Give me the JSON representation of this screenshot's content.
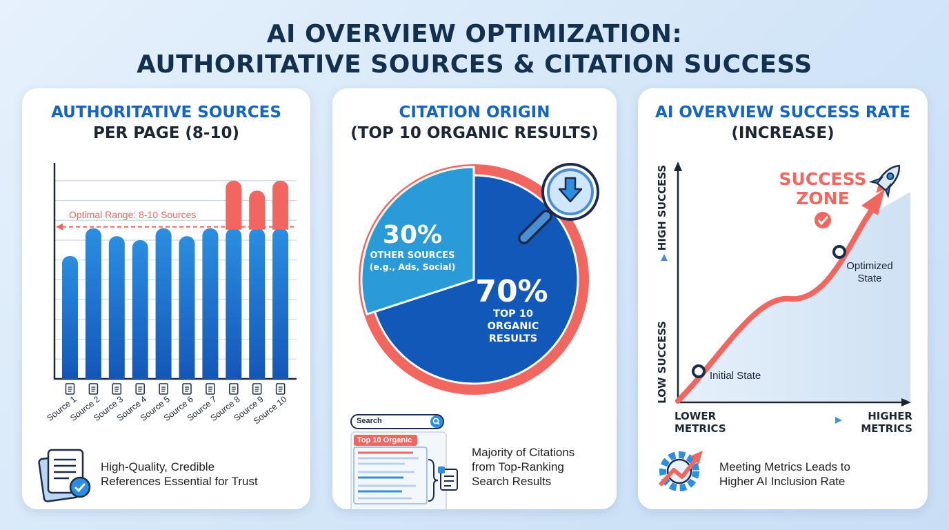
{
  "page": {
    "title_line1": "AI OVERVIEW OPTIMIZATION:",
    "title_line2": "AUTHORITATIVE SOURCES & CITATION SUCCESS"
  },
  "colors": {
    "blue": "#1f7dd6",
    "blue_dark": "#1258b8",
    "light_blue": "#2b9bd8",
    "red": "#f26660",
    "navy": "#14304f"
  },
  "chart_data": [
    {
      "type": "bar",
      "title_line1": "AUTHORITATIVE SOURCES",
      "title_line2": "PER PAGE (8-10)",
      "categories": [
        "Source 1",
        "Source 2",
        "Source 3",
        "Source 4",
        "Source 5",
        "Source 6",
        "Source 7",
        "Source 8",
        "Source 9",
        "Source 10"
      ],
      "values": [
        6.2,
        7.6,
        7.2,
        7.0,
        7.6,
        7.2,
        7.6,
        10.0,
        9.5,
        10.0
      ],
      "reference_line": {
        "value": 7.6,
        "label": "Optimal Range: 8-10 Sources"
      },
      "ylim": [
        0,
        10.9
      ],
      "grid": true,
      "footnote_line1": "High-Quality, Credible",
      "footnote_line2": "References Essential for Trust"
    },
    {
      "type": "pie",
      "title_line1": "CITATION ORIGIN",
      "title_line2": "(TOP 10 ORGANIC RESULTS)",
      "slices": [
        {
          "value": 70,
          "percent_label": "70%",
          "label_lines": [
            "TOP 10",
            "ORGANIC",
            "RESULTS"
          ]
        },
        {
          "value": 30,
          "percent_label": "30%",
          "label_lines": [
            "OTHER SOURCES",
            "(e.g., Ads, Social)"
          ]
        }
      ],
      "search_box_label": "Search",
      "result_tag": "Top 10 Organic",
      "footnote_line1": "Majority of Citations",
      "footnote_line2": "from Top-Ranking",
      "footnote_line3": "Search Results"
    },
    {
      "type": "line",
      "title_line1": "AI OVERVIEW SUCCESS RATE",
      "title_line2": "(INCREASE)",
      "y_axis_low": "LOW SUCCESS",
      "y_axis_high": "HIGH SUCCESS",
      "x_axis_low_line1": "LOWER",
      "x_axis_low_line2": "METRICS",
      "x_axis_high_line1": "HIGHER",
      "x_axis_high_line2": "METRICS",
      "points": [
        {
          "label": "Initial State"
        },
        {
          "label_line1": "Optimized",
          "label_line2": "State"
        }
      ],
      "zone_line1": "SUCCESS",
      "zone_line2": "ZONE",
      "footnote_line1": "Meeting Metrics Leads to",
      "footnote_line2": "Higher AI Inclusion Rate"
    }
  ]
}
